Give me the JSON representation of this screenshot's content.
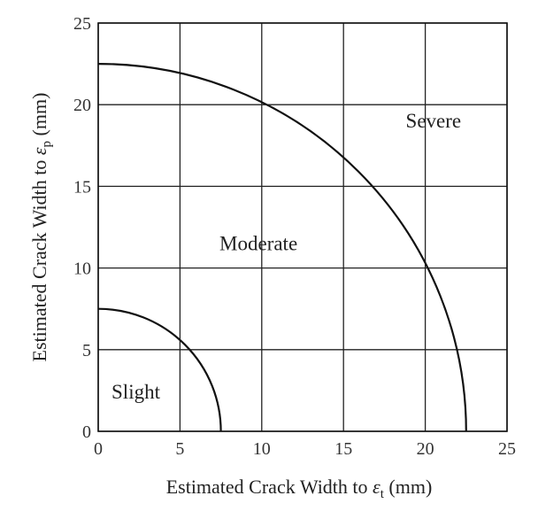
{
  "chart_data": {
    "type": "line",
    "xlabel": {
      "prefix": "Estimated Crack Width to ",
      "symbol": "ε",
      "subscript": "t",
      "suffix": " (mm)"
    },
    "ylabel": {
      "prefix": "Estimated Crack Width to ",
      "symbol": "ε",
      "subscript": "p",
      "suffix": " (mm)"
    },
    "xlim": [
      0,
      25
    ],
    "ylim": [
      0,
      25
    ],
    "xticks": [
      0,
      5,
      10,
      15,
      20,
      25
    ],
    "yticks": [
      0,
      5,
      10,
      15,
      20,
      25
    ],
    "grid": true,
    "series": [
      {
        "shape": "quarter-circle",
        "radius": 7.5
      },
      {
        "shape": "quarter-circle",
        "radius": 22.5
      }
    ],
    "zones": [
      {
        "label": "Slight",
        "x": 2.3,
        "y": 2.0
      },
      {
        "label": "Moderate",
        "x": 9.8,
        "y": 11.1
      },
      {
        "label": "Severe",
        "x": 20.5,
        "y": 18.6
      }
    ]
  }
}
